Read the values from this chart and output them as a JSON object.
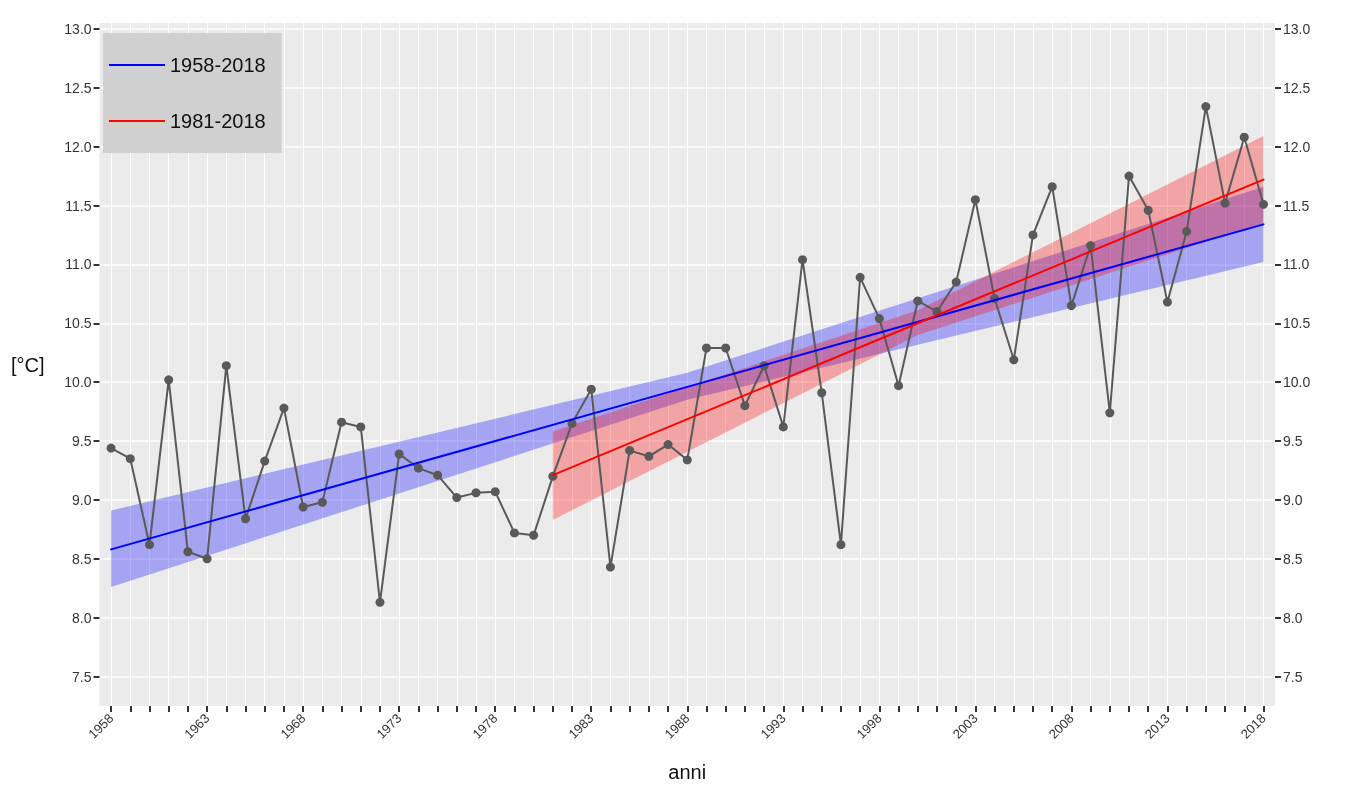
{
  "chart_data": {
    "type": "line",
    "xlabel": "anni",
    "ylabel": "[°C]",
    "x": [
      1958,
      1959,
      1960,
      1961,
      1962,
      1963,
      1964,
      1965,
      1966,
      1967,
      1968,
      1969,
      1970,
      1971,
      1972,
      1973,
      1974,
      1975,
      1976,
      1977,
      1978,
      1979,
      1980,
      1981,
      1982,
      1983,
      1984,
      1985,
      1986,
      1987,
      1988,
      1989,
      1990,
      1991,
      1992,
      1993,
      1994,
      1995,
      1996,
      1997,
      1998,
      1999,
      2000,
      2001,
      2002,
      2003,
      2004,
      2005,
      2006,
      2007,
      2008,
      2009,
      2010,
      2011,
      2012,
      2013,
      2014,
      2015,
      2016,
      2017,
      2018
    ],
    "series": [
      {
        "color": "#595959",
        "marker": "circle",
        "values": [
          9.44,
          9.35,
          8.62,
          10.02,
          8.56,
          8.5,
          10.14,
          8.84,
          9.33,
          9.78,
          8.94,
          8.98,
          9.66,
          9.62,
          8.13,
          9.39,
          9.27,
          9.21,
          9.02,
          9.06,
          9.07,
          8.72,
          8.7,
          9.2,
          9.65,
          9.94,
          8.43,
          9.42,
          9.37,
          9.47,
          9.34,
          10.29,
          10.29,
          9.8,
          10.14,
          9.62,
          11.04,
          9.91,
          8.62,
          10.89,
          10.54,
          9.97,
          10.69,
          10.6,
          10.85,
          11.55,
          10.71,
          10.19,
          11.25,
          11.66,
          10.65,
          11.16,
          9.74,
          11.75,
          11.46,
          10.68,
          11.28,
          12.34,
          11.52,
          12.08,
          11.51
        ]
      },
      {
        "name": "1958-2018",
        "color": "#0000ff",
        "x": [
          1958,
          1988,
          2018
        ],
        "values": [
          8.58,
          9.96,
          11.34
        ],
        "lower": [
          8.26,
          9.85,
          11.02
        ],
        "upper": [
          8.91,
          10.08,
          11.66
        ]
      },
      {
        "name": "1981-2018",
        "color": "#ff0000",
        "x": [
          1981,
          2000,
          2018
        ],
        "values": [
          9.21,
          10.5,
          11.72
        ],
        "lower": [
          8.83,
          10.4,
          11.35
        ],
        "upper": [
          9.58,
          10.61,
          12.09
        ]
      }
    ],
    "xlim": [
      1957.4,
      2018.6
    ],
    "xticks": [
      1958,
      {
        "value": 1959,
        "label": null
      },
      {
        "value": 1960,
        "label": null
      },
      {
        "value": 1961,
        "label": null
      },
      {
        "value": 1962,
        "label": null
      },
      1963,
      {
        "value": 1964,
        "label": null
      },
      {
        "value": 1965,
        "label": null
      },
      {
        "value": 1966,
        "label": null
      },
      {
        "value": 1967,
        "label": null
      },
      1968,
      {
        "value": 1969,
        "label": null
      },
      {
        "value": 1970,
        "label": null
      },
      {
        "value": 1971,
        "label": null
      },
      {
        "value": 1972,
        "label": null
      },
      1973,
      {
        "value": 1974,
        "label": null
      },
      {
        "value": 1975,
        "label": null
      },
      {
        "value": 1976,
        "label": null
      },
      {
        "value": 1977,
        "label": null
      },
      1978,
      {
        "value": 1979,
        "label": null
      },
      {
        "value": 1980,
        "label": null
      },
      {
        "value": 1981,
        "label": null
      },
      {
        "value": 1982,
        "label": null
      },
      1983,
      {
        "value": 1984,
        "label": null
      },
      {
        "value": 1985,
        "label": null
      },
      {
        "value": 1986,
        "label": null
      },
      {
        "value": 1987,
        "label": null
      },
      1988,
      {
        "value": 1989,
        "label": null
      },
      {
        "value": 1990,
        "label": null
      },
      {
        "value": 1991,
        "label": null
      },
      {
        "value": 1992,
        "label": null
      },
      1993,
      {
        "value": 1994,
        "label": null
      },
      {
        "value": 1995,
        "label": null
      },
      {
        "value": 1996,
        "label": null
      },
      {
        "value": 1997,
        "label": null
      },
      1998,
      {
        "value": 1999,
        "label": null
      },
      {
        "value": 2000,
        "label": null
      },
      {
        "value": 2001,
        "label": null
      },
      {
        "value": 2002,
        "label": null
      },
      2003,
      {
        "value": 2004,
        "label": null
      },
      {
        "value": 2005,
        "label": null
      },
      {
        "value": 2006,
        "label": null
      },
      {
        "value": 2007,
        "label": null
      },
      2008,
      {
        "value": 2009,
        "label": null
      },
      {
        "value": 2010,
        "label": null
      },
      {
        "value": 2011,
        "label": null
      },
      {
        "value": 2012,
        "label": null
      },
      2013,
      {
        "value": 2014,
        "label": null
      },
      {
        "value": 2015,
        "label": null
      },
      {
        "value": 2016,
        "label": null
      },
      {
        "value": 2017,
        "label": null
      },
      2018
    ],
    "ylim": [
      7.25,
      13.05
    ],
    "yticks": [
      {
        "value": 7.5,
        "label": "7.5"
      },
      {
        "value": 8,
        "label": "8.0"
      },
      {
        "value": 8.5,
        "label": "8.5"
      },
      {
        "value": 9,
        "label": "9.0"
      },
      {
        "value": 9.5,
        "label": "9.5"
      },
      {
        "value": 10,
        "label": "10.0"
      },
      {
        "value": 10.5,
        "label": "10.5"
      },
      {
        "value": 11,
        "label": "11.0"
      },
      {
        "value": 11.5,
        "label": "11.5"
      },
      {
        "value": 12,
        "label": "12.0"
      },
      {
        "value": 12.5,
        "label": "12.5"
      },
      {
        "value": 13,
        "label": "13.0"
      }
    ],
    "y2lim": [
      7.25,
      13.05
    ],
    "y2ticks": [
      {
        "value": 7.5,
        "label": "7.5"
      },
      {
        "value": 8,
        "label": "8.0"
      },
      {
        "value": 8.5,
        "label": "8.5"
      },
      {
        "value": 9,
        "label": "9.0"
      },
      {
        "value": 9.5,
        "label": "9.5"
      },
      {
        "value": 10,
        "label": "10.0"
      },
      {
        "value": 10.5,
        "label": "10.5"
      },
      {
        "value": 11,
        "label": "11.0"
      },
      {
        "value": 11.5,
        "label": "11.5"
      },
      {
        "value": 12,
        "label": "12.0"
      },
      {
        "value": 12.5,
        "label": "12.5"
      },
      {
        "value": 13,
        "label": "13.0"
      }
    ],
    "grid": true,
    "legend": "top left",
    "line_style": "solid"
  }
}
